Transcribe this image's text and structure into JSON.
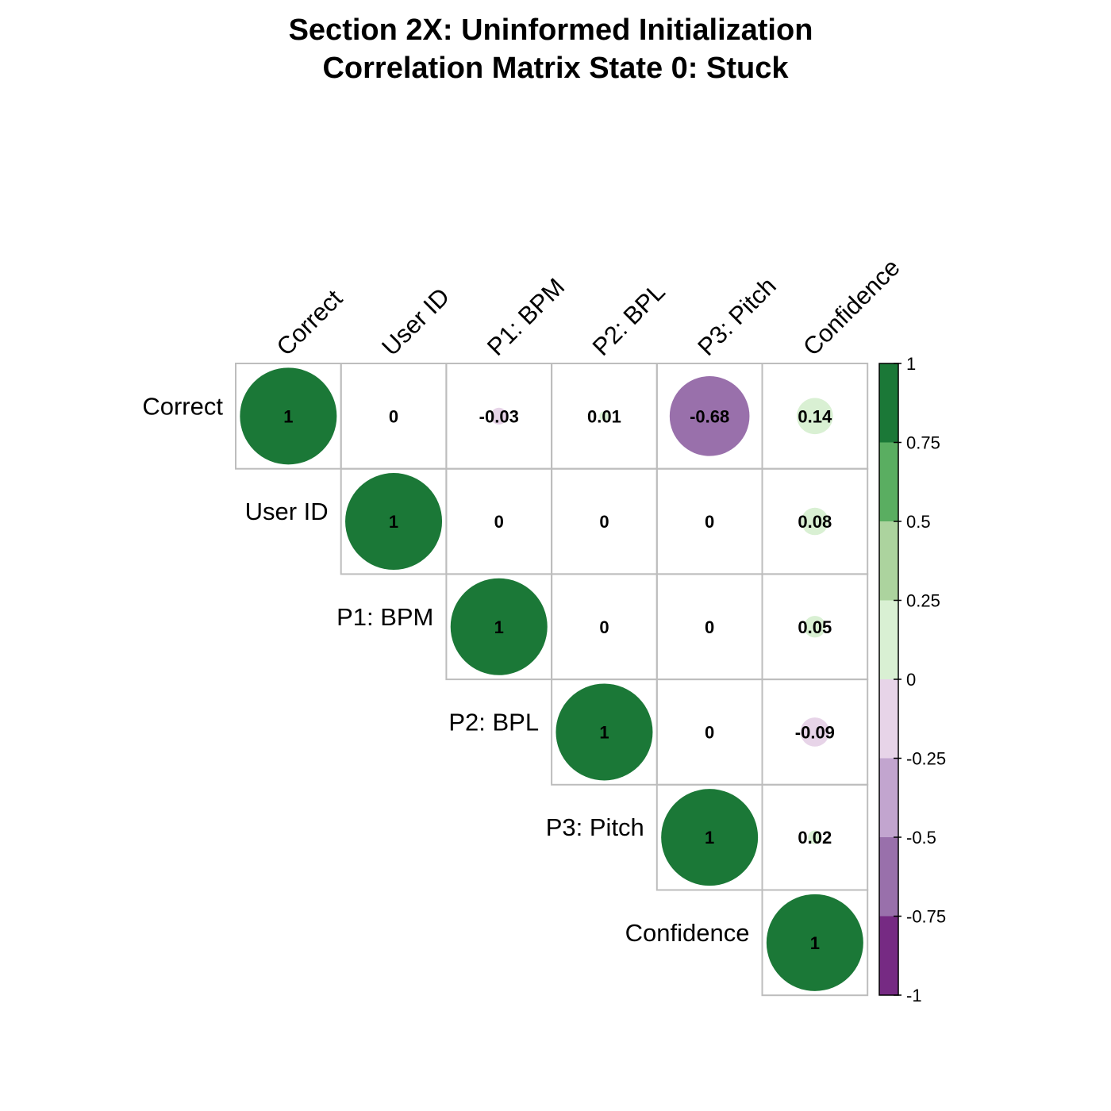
{
  "chart_data": {
    "type": "heatmap",
    "title": "Section 2X: Uninformed Initialization",
    "subtitle": "Correlation Matrix State 0: Stuck",
    "variables": [
      "Correct",
      "User ID",
      "P1: BPM",
      "P2: BPL",
      "P3: Pitch",
      "Confidence"
    ],
    "matrix": [
      [
        1,
        0,
        -0.03,
        0.01,
        -0.68,
        0.14
      ],
      [
        0,
        1,
        0,
        0,
        0,
        0.08
      ],
      [
        -0.03,
        0,
        1,
        0,
        0,
        0.05
      ],
      [
        0.01,
        0,
        0,
        1,
        0,
        -0.09
      ],
      [
        -0.68,
        0,
        0,
        0,
        1,
        0.02
      ],
      [
        0.14,
        0.08,
        0.05,
        -0.09,
        0.02,
        1
      ]
    ],
    "display": "upper-triangle",
    "marker": "circle",
    "legend": {
      "placement": "right",
      "range": [
        -1,
        1
      ],
      "ticks": [
        "1",
        "0.75",
        "0.5",
        "0.25",
        "0",
        "-0.25",
        "-0.5",
        "-0.75",
        "-1"
      ],
      "colors": [
        "#762A83",
        "#9970AB",
        "#C2A5CF",
        "#E7D4E8",
        "#D9F0D3",
        "#ACD39E",
        "#5AAE61",
        "#1B7837"
      ]
    },
    "grid": true
  }
}
